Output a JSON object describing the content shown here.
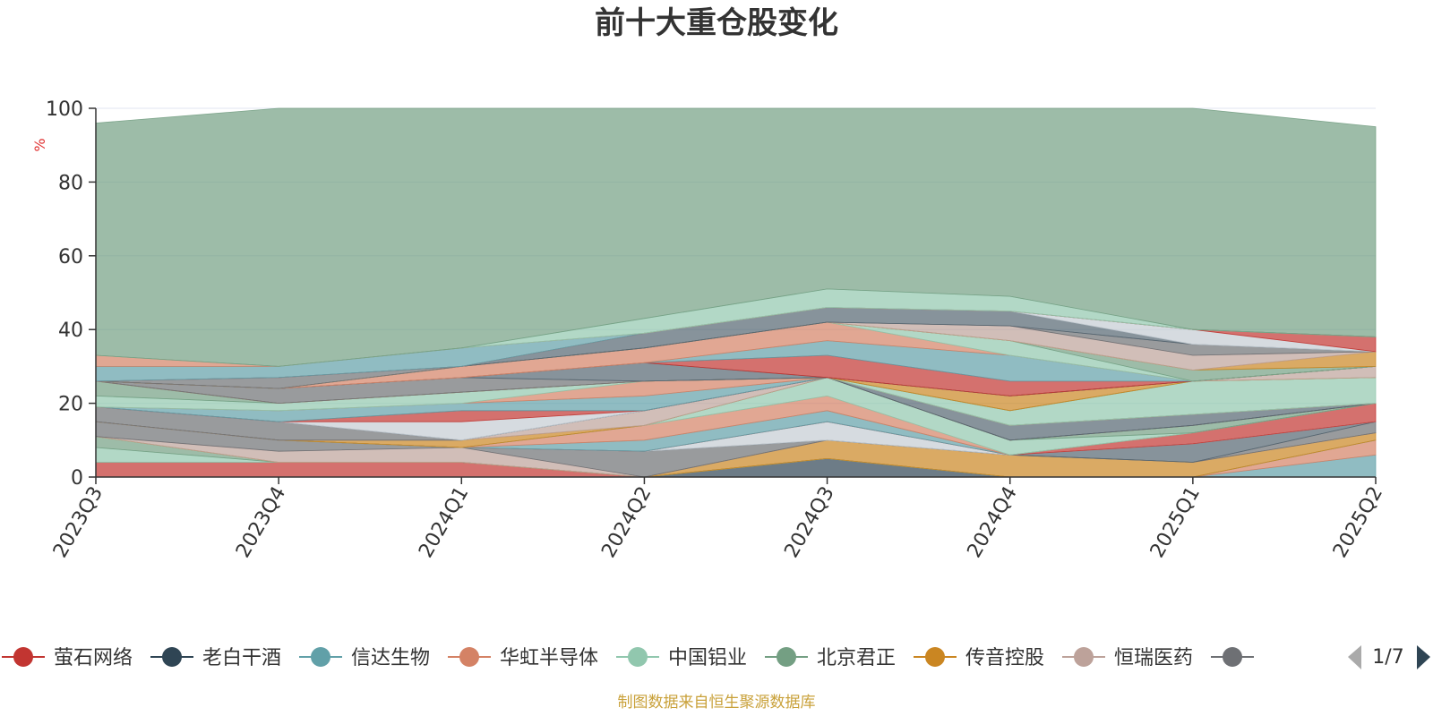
{
  "chart_data": {
    "type": "area",
    "stacked": true,
    "title": "前十大重仓股变化",
    "ylabel": "%",
    "ylim": [
      0,
      100
    ],
    "yticks": [
      "0",
      "20",
      "40",
      "60",
      "80",
      "100"
    ],
    "categories": [
      "2023Q3",
      "2023Q4",
      "2024Q1",
      "2024Q2",
      "2024Q3",
      "2024Q4",
      "2025Q1",
      "2025Q2"
    ],
    "grid": true,
    "legend_position": "bottom",
    "legend_page": "1/7",
    "series": [
      {
        "name": "萤石网络",
        "color": "#c23531",
        "values": [
          4,
          4,
          4,
          0,
          0,
          0,
          0,
          0
        ]
      },
      {
        "name": "老白干酒",
        "color": "#2f4554",
        "values": [
          0,
          0,
          0,
          0,
          5,
          0,
          0,
          0
        ]
      },
      {
        "name": "信达生物",
        "color": "#61a0a8",
        "values": [
          0,
          0,
          0,
          0,
          0,
          0,
          0,
          6
        ]
      },
      {
        "name": "华虹半导体",
        "color": "#d48265",
        "values": [
          0,
          0,
          0,
          0,
          0,
          0,
          0,
          4
        ]
      },
      {
        "name": "中国铝业",
        "color": "#91c7ae",
        "values": [
          4,
          0,
          0,
          0,
          0,
          0,
          0,
          0
        ]
      },
      {
        "name": "北京君正",
        "color": "#749f83",
        "values": [
          3,
          0,
          0,
          0,
          0,
          0,
          0,
          0
        ]
      },
      {
        "name": "传音控股",
        "color": "#ca8622",
        "values": [
          0,
          0,
          0,
          0,
          5,
          6,
          4,
          2
        ]
      },
      {
        "name": "恒瑞医药",
        "color": "#bda29a",
        "values": [
          0,
          3,
          4,
          0,
          0,
          0,
          0,
          0
        ]
      },
      {
        "name": "",
        "color": "#6e7074",
        "values": [
          4,
          3,
          0,
          7,
          0,
          0,
          0,
          3
        ]
      },
      {
        "name": "",
        "color": "#546570",
        "values": [
          0,
          0,
          0,
          0,
          0,
          0,
          5,
          0
        ]
      },
      {
        "name": "",
        "color": "#c4ccd3",
        "values": [
          0,
          0,
          0,
          0,
          5,
          0,
          0,
          0
        ]
      },
      {
        "name": "",
        "color": "#c23531",
        "values": [
          0,
          0,
          0,
          0,
          0,
          0,
          3,
          5
        ]
      },
      {
        "name": "",
        "color": "#61a0a8",
        "values": [
          0,
          0,
          0,
          3,
          3,
          0,
          0,
          0
        ]
      },
      {
        "name": "",
        "color": "#d48265",
        "values": [
          0,
          0,
          0,
          4,
          4,
          0,
          0,
          0
        ]
      },
      {
        "name": "",
        "color": "#91c7ae",
        "values": [
          0,
          0,
          0,
          0,
          5,
          4,
          0,
          0
        ]
      },
      {
        "name": "",
        "color": "#749f83",
        "values": [
          0,
          0,
          0,
          0,
          0,
          0,
          2,
          0
        ]
      },
      {
        "name": "",
        "color": "#ca8622",
        "values": [
          0,
          0,
          2,
          0,
          0,
          0,
          0,
          0
        ]
      },
      {
        "name": "",
        "color": "#bda29a",
        "values": [
          0,
          0,
          0,
          4,
          0,
          0,
          0,
          0
        ]
      },
      {
        "name": "",
        "color": "#6e7074",
        "values": [
          4,
          5,
          0,
          0,
          0,
          0,
          0,
          0
        ]
      },
      {
        "name": "",
        "color": "#546570",
        "values": [
          0,
          0,
          0,
          0,
          0,
          4,
          3,
          0
        ]
      },
      {
        "name": "",
        "color": "#c4ccd3",
        "values": [
          0,
          0,
          5,
          0,
          0,
          0,
          0,
          0
        ]
      },
      {
        "name": "",
        "color": "#c23531",
        "values": [
          0,
          0,
          3,
          0,
          0,
          0,
          0,
          0
        ]
      },
      {
        "name": "",
        "color": "#61a0a8",
        "values": [
          0,
          3,
          2,
          4,
          0,
          0,
          0,
          0
        ]
      },
      {
        "name": "",
        "color": "#d48265",
        "values": [
          0,
          0,
          0,
          4,
          0,
          0,
          0,
          0
        ]
      },
      {
        "name": "",
        "color": "#91c7ae",
        "values": [
          3,
          2,
          3,
          0,
          0,
          4,
          9,
          7
        ]
      },
      {
        "name": "",
        "color": "#749f83",
        "values": [
          4,
          0,
          0,
          0,
          0,
          0,
          0,
          0
        ]
      },
      {
        "name": "",
        "color": "#ca8622",
        "values": [
          0,
          0,
          0,
          0,
          0,
          4,
          0,
          0
        ]
      },
      {
        "name": "",
        "color": "#bda29a",
        "values": [
          0,
          0,
          0,
          0,
          0,
          0,
          0,
          3
        ]
      },
      {
        "name": "",
        "color": "#6e7074",
        "values": [
          0,
          4,
          4,
          0,
          0,
          0,
          0,
          0
        ]
      },
      {
        "name": "",
        "color": "#546570",
        "values": [
          0,
          0,
          0,
          5,
          0,
          0,
          0,
          0
        ]
      },
      {
        "name": "",
        "color": "#c23531",
        "values": [
          0,
          0,
          0,
          0,
          6,
          4,
          0,
          0
        ]
      },
      {
        "name": "",
        "color": "#61a0a8",
        "values": [
          0,
          0,
          0,
          0,
          4,
          7,
          0,
          0
        ]
      },
      {
        "name": "",
        "color": "#d48265",
        "values": [
          0,
          0,
          3,
          4,
          5,
          0,
          0,
          0
        ]
      },
      {
        "name": "",
        "color": "#91c7ae",
        "values": [
          0,
          0,
          0,
          0,
          0,
          4,
          0,
          0
        ]
      },
      {
        "name": "",
        "color": "#749f83",
        "values": [
          0,
          0,
          0,
          0,
          0,
          0,
          3,
          0
        ]
      },
      {
        "name": "",
        "color": "#ca8622",
        "values": [
          0,
          0,
          0,
          0,
          0,
          0,
          0,
          4
        ]
      },
      {
        "name": "",
        "color": "#bda29a",
        "values": [
          0,
          0,
          0,
          0,
          0,
          4,
          4,
          0
        ]
      },
      {
        "name": "",
        "color": "#6e7074",
        "values": [
          0,
          3,
          0,
          0,
          0,
          0,
          3,
          0
        ]
      },
      {
        "name": "",
        "color": "#546570",
        "values": [
          0,
          0,
          0,
          4,
          4,
          4,
          0,
          0
        ]
      },
      {
        "name": "",
        "color": "#c4ccd3",
        "values": [
          0,
          0,
          0,
          0,
          0,
          0,
          4,
          0
        ]
      },
      {
        "name": "",
        "color": "#c23531",
        "values": [
          0,
          0,
          0,
          0,
          0,
          0,
          0,
          4
        ]
      },
      {
        "name": "",
        "color": "#61a0a8",
        "values": [
          4,
          3,
          5,
          0,
          0,
          0,
          0,
          0
        ]
      },
      {
        "name": "",
        "color": "#d48265",
        "values": [
          3,
          0,
          0,
          0,
          0,
          0,
          0,
          0
        ]
      },
      {
        "name": "",
        "color": "#91c7ae",
        "values": [
          0,
          0,
          0,
          4,
          5,
          4,
          0,
          0
        ]
      },
      {
        "name": "",
        "color": "#749f83",
        "values": [
          63,
          70,
          65,
          57,
          52,
          55,
          60,
          57
        ]
      }
    ]
  },
  "legend_items": [
    {
      "name": "萤石网络",
      "color": "#c23531"
    },
    {
      "name": "老白干酒",
      "color": "#2f4554"
    },
    {
      "name": "信达生物",
      "color": "#61a0a8"
    },
    {
      "name": "华虹半导体",
      "color": "#d48265"
    },
    {
      "name": "中国铝业",
      "color": "#91c7ae"
    },
    {
      "name": "北京君正",
      "color": "#749f83"
    },
    {
      "name": "传音控股",
      "color": "#ca8622"
    },
    {
      "name": "恒瑞医药",
      "color": "#bda29a"
    },
    {
      "name": "",
      "color": "#6e7074"
    }
  ],
  "pager": {
    "text": "1/7",
    "prev_icon": "triangle-left-icon",
    "next_icon": "triangle-right-icon",
    "prev_color": "#aaaaaa",
    "next_color": "#2f4554"
  },
  "footer": {
    "source": "制图数据来自恒生聚源数据库"
  }
}
